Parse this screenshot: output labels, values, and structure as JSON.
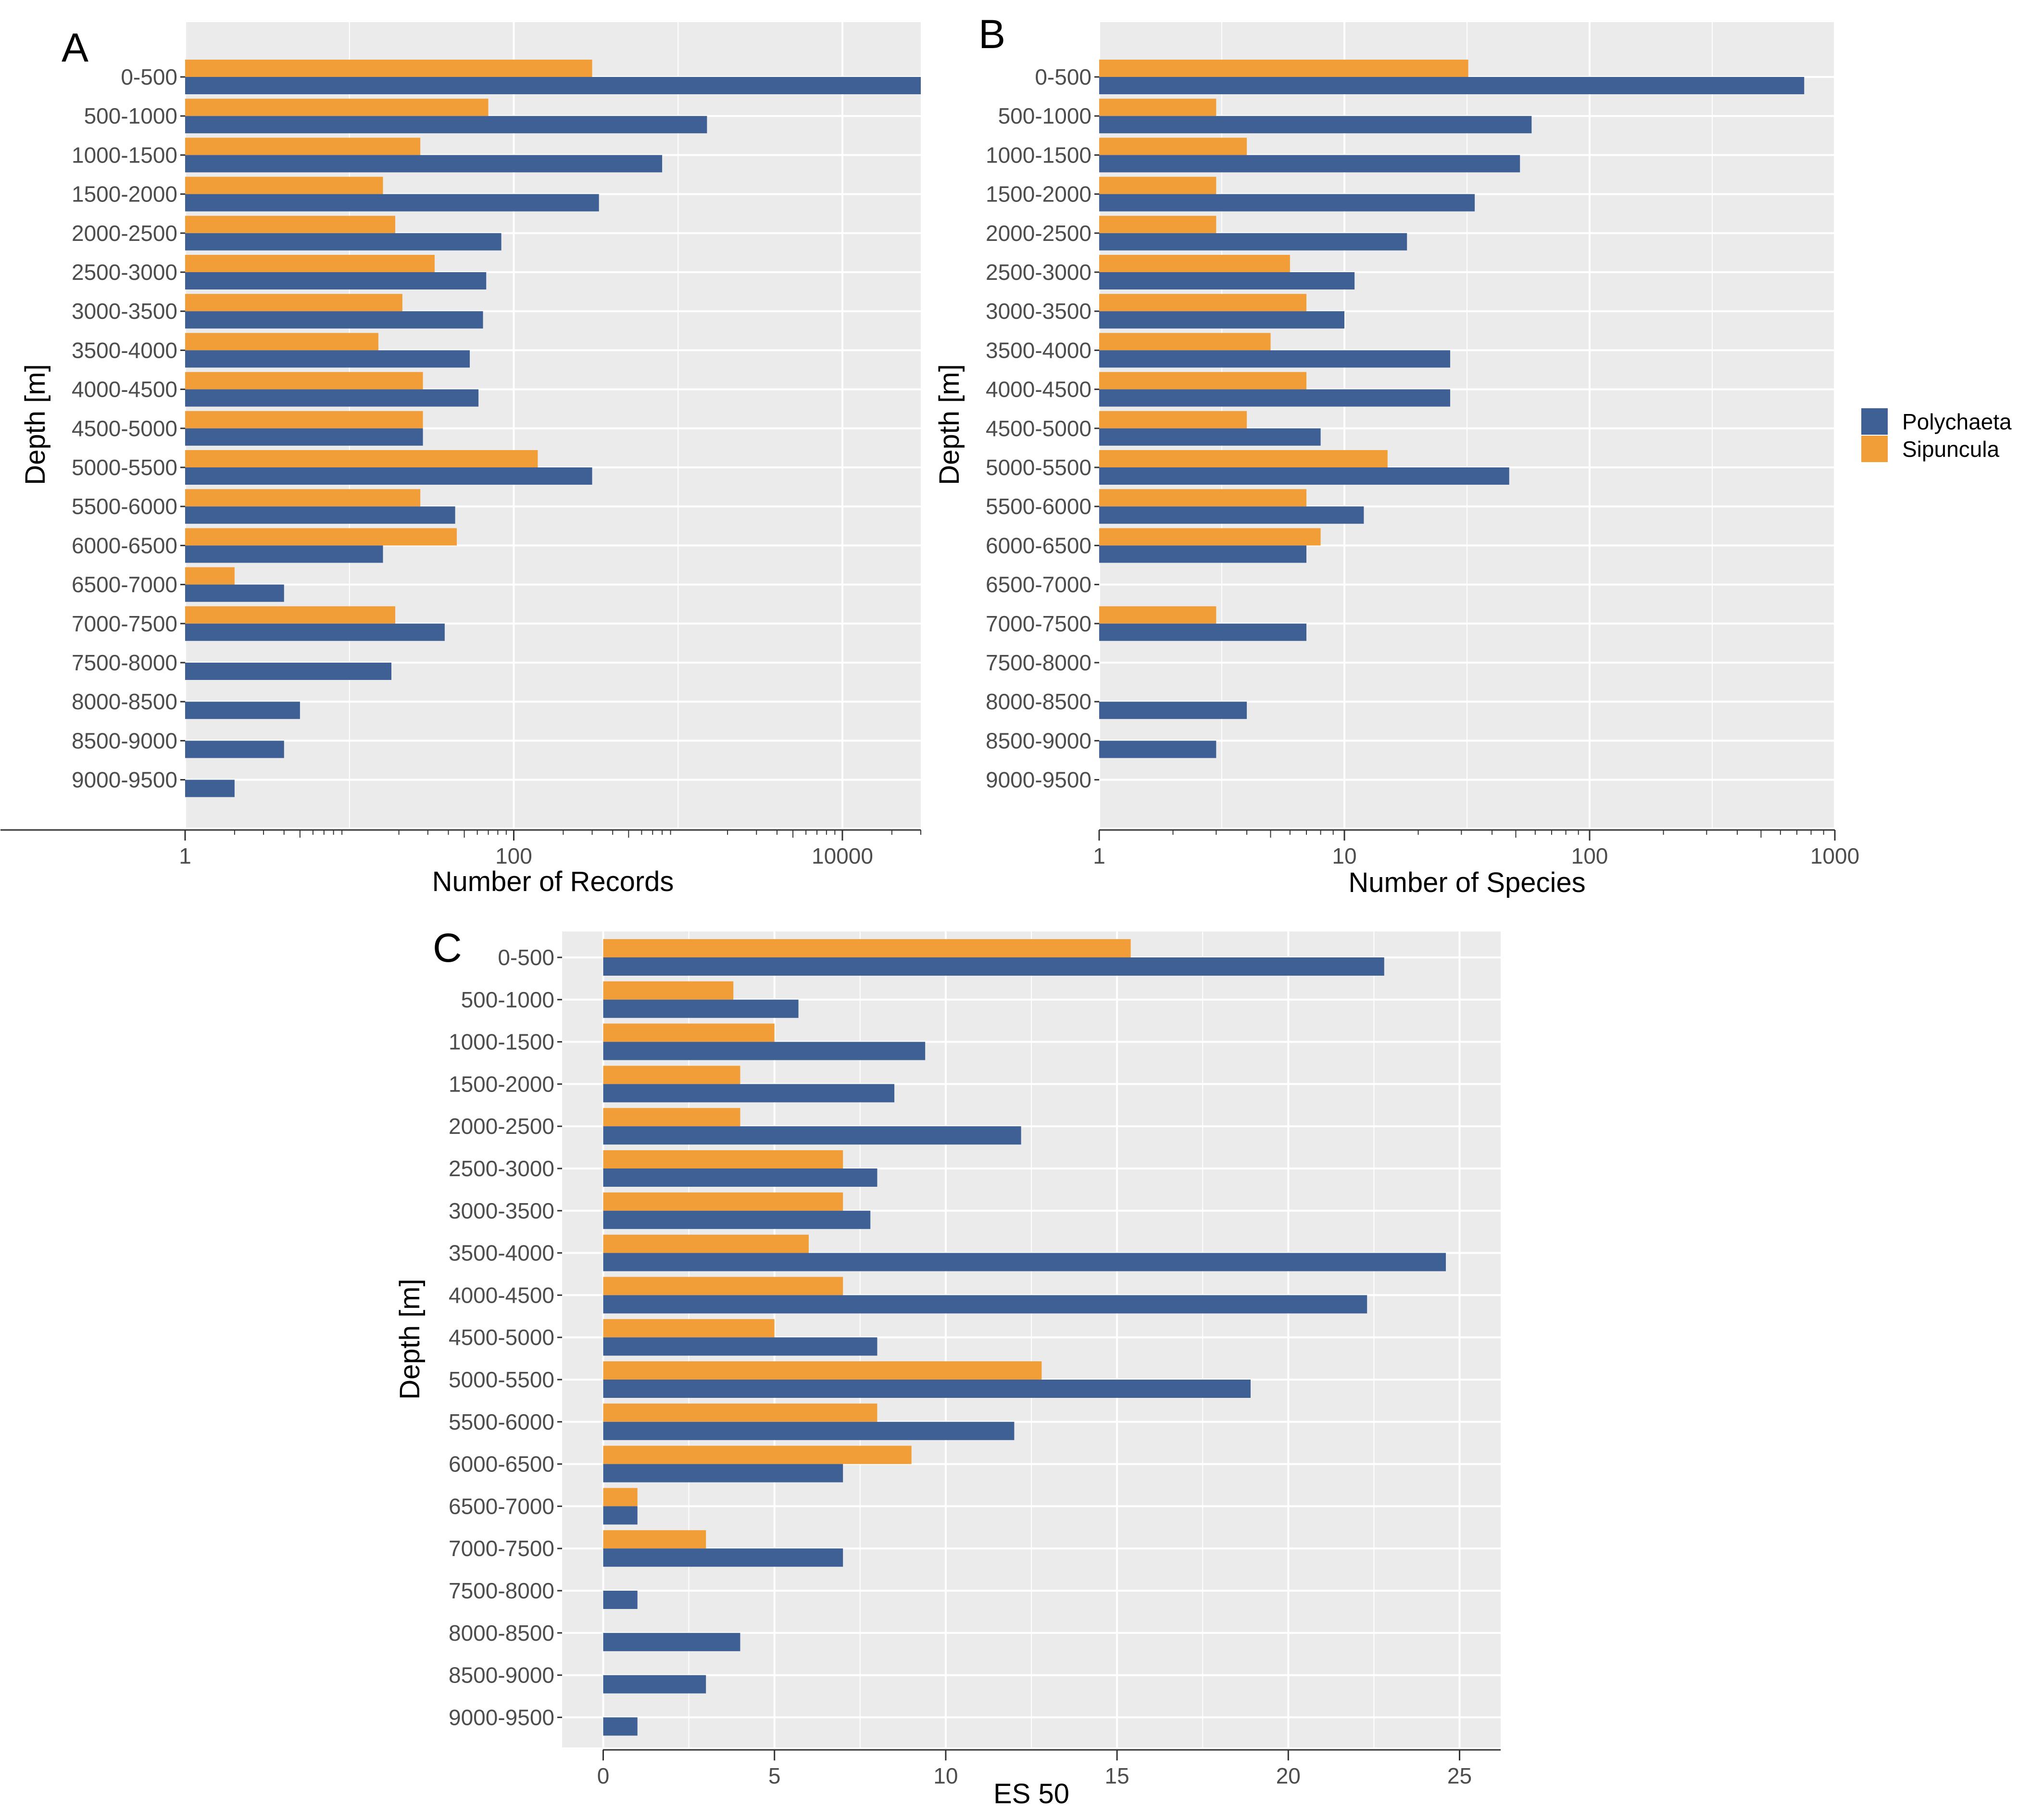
{
  "chart_data": [
    {
      "panel": "A",
      "type": "bar",
      "orientation": "horizontal",
      "scale": "log10",
      "xlabel": "Number of Records",
      "ylabel": "Depth [m]",
      "xlim": [
        1,
        30000
      ],
      "xticks": [
        1,
        100,
        10000
      ],
      "xtick_labels": [
        "1",
        "100",
        "10000"
      ],
      "categories": [
        "0-500",
        "500-1000",
        "1000-1500",
        "1500-2000",
        "2000-2500",
        "2500-3000",
        "3000-3500",
        "3500-4000",
        "4000-4500",
        "4500-5000",
        "5000-5500",
        "5500-6000",
        "6000-6500",
        "6500-7000",
        "7000-7500",
        "7500-8000",
        "8000-8500",
        "8500-9000",
        "9000-9500"
      ],
      "series": [
        {
          "name": "Sipuncula",
          "values": [
            300,
            70,
            27,
            16,
            19,
            33,
            21,
            15,
            28,
            28,
            140,
            27,
            45,
            2,
            19,
            null,
            null,
            null,
            null
          ]
        },
        {
          "name": "Polychaeta",
          "values": [
            30000,
            1500,
            800,
            330,
            84,
            68,
            65,
            54,
            61,
            28,
            300,
            44,
            16,
            4,
            38,
            18,
            5,
            4,
            2
          ]
        }
      ]
    },
    {
      "panel": "B",
      "type": "bar",
      "orientation": "horizontal",
      "scale": "log10",
      "xlabel": "Number of Species",
      "ylabel": "Depth [m]",
      "xlim": [
        1,
        1000
      ],
      "xticks": [
        1,
        10,
        100,
        1000
      ],
      "xtick_labels": [
        "1",
        "10",
        "100",
        "1000"
      ],
      "categories": [
        "0-500",
        "500-1000",
        "1000-1500",
        "1500-2000",
        "2000-2500",
        "2500-3000",
        "3000-3500",
        "3500-4000",
        "4000-4500",
        "4500-5000",
        "5000-5500",
        "5500-6000",
        "6000-6500",
        "6500-7000",
        "7000-7500",
        "7500-8000",
        "8000-8500",
        "8500-9000",
        "9000-9500"
      ],
      "series": [
        {
          "name": "Sipuncula",
          "values": [
            32,
            3,
            4,
            3,
            3,
            6,
            7,
            5,
            7,
            4,
            15,
            7,
            8,
            null,
            3,
            null,
            null,
            null,
            null
          ]
        },
        {
          "name": "Polychaeta",
          "values": [
            750,
            58,
            52,
            34,
            18,
            11,
            10,
            27,
            27,
            8,
            47,
            12,
            7,
            null,
            7,
            null,
            4,
            3,
            null
          ]
        }
      ]
    },
    {
      "panel": "C",
      "type": "bar",
      "orientation": "horizontal",
      "scale": "linear",
      "xlabel": "ES 50",
      "ylabel": "Depth [m]",
      "xlim": [
        -1.2,
        26.2
      ],
      "xticks": [
        0,
        5,
        10,
        15,
        20,
        25
      ],
      "xtick_labels": [
        "0",
        "5",
        "10",
        "15",
        "20",
        "25"
      ],
      "categories": [
        "0-500",
        "500-1000",
        "1000-1500",
        "1500-2000",
        "2000-2500",
        "2500-3000",
        "3000-3500",
        "3500-4000",
        "4000-4500",
        "4500-5000",
        "5000-5500",
        "5500-6000",
        "6000-6500",
        "6500-7000",
        "7000-7500",
        "7500-8000",
        "8000-8500",
        "8500-9000",
        "9000-9500"
      ],
      "series": [
        {
          "name": "Sipuncula",
          "values": [
            15.4,
            3.8,
            5.0,
            4.0,
            4.0,
            7.0,
            7.0,
            6.0,
            7.0,
            5.0,
            12.8,
            8.0,
            9.0,
            1.0,
            3.0,
            null,
            null,
            null,
            null
          ]
        },
        {
          "name": "Polychaeta",
          "values": [
            22.8,
            5.7,
            9.4,
            8.5,
            12.2,
            8.0,
            7.8,
            24.6,
            22.3,
            8.0,
            18.9,
            12.0,
            7.0,
            1.0,
            7.0,
            1.0,
            4.0,
            3.0,
            1.0
          ]
        }
      ]
    }
  ],
  "legend": {
    "items": [
      {
        "label": "Polychaeta",
        "color": "#3E6095"
      },
      {
        "label": "Sipuncula",
        "color": "#F29E38"
      }
    ]
  },
  "colors": {
    "panel_bg": "#EBEBEB",
    "grid": "#FFFFFF",
    "polychaeta": "#3E6095",
    "sipuncula": "#F29E38"
  }
}
